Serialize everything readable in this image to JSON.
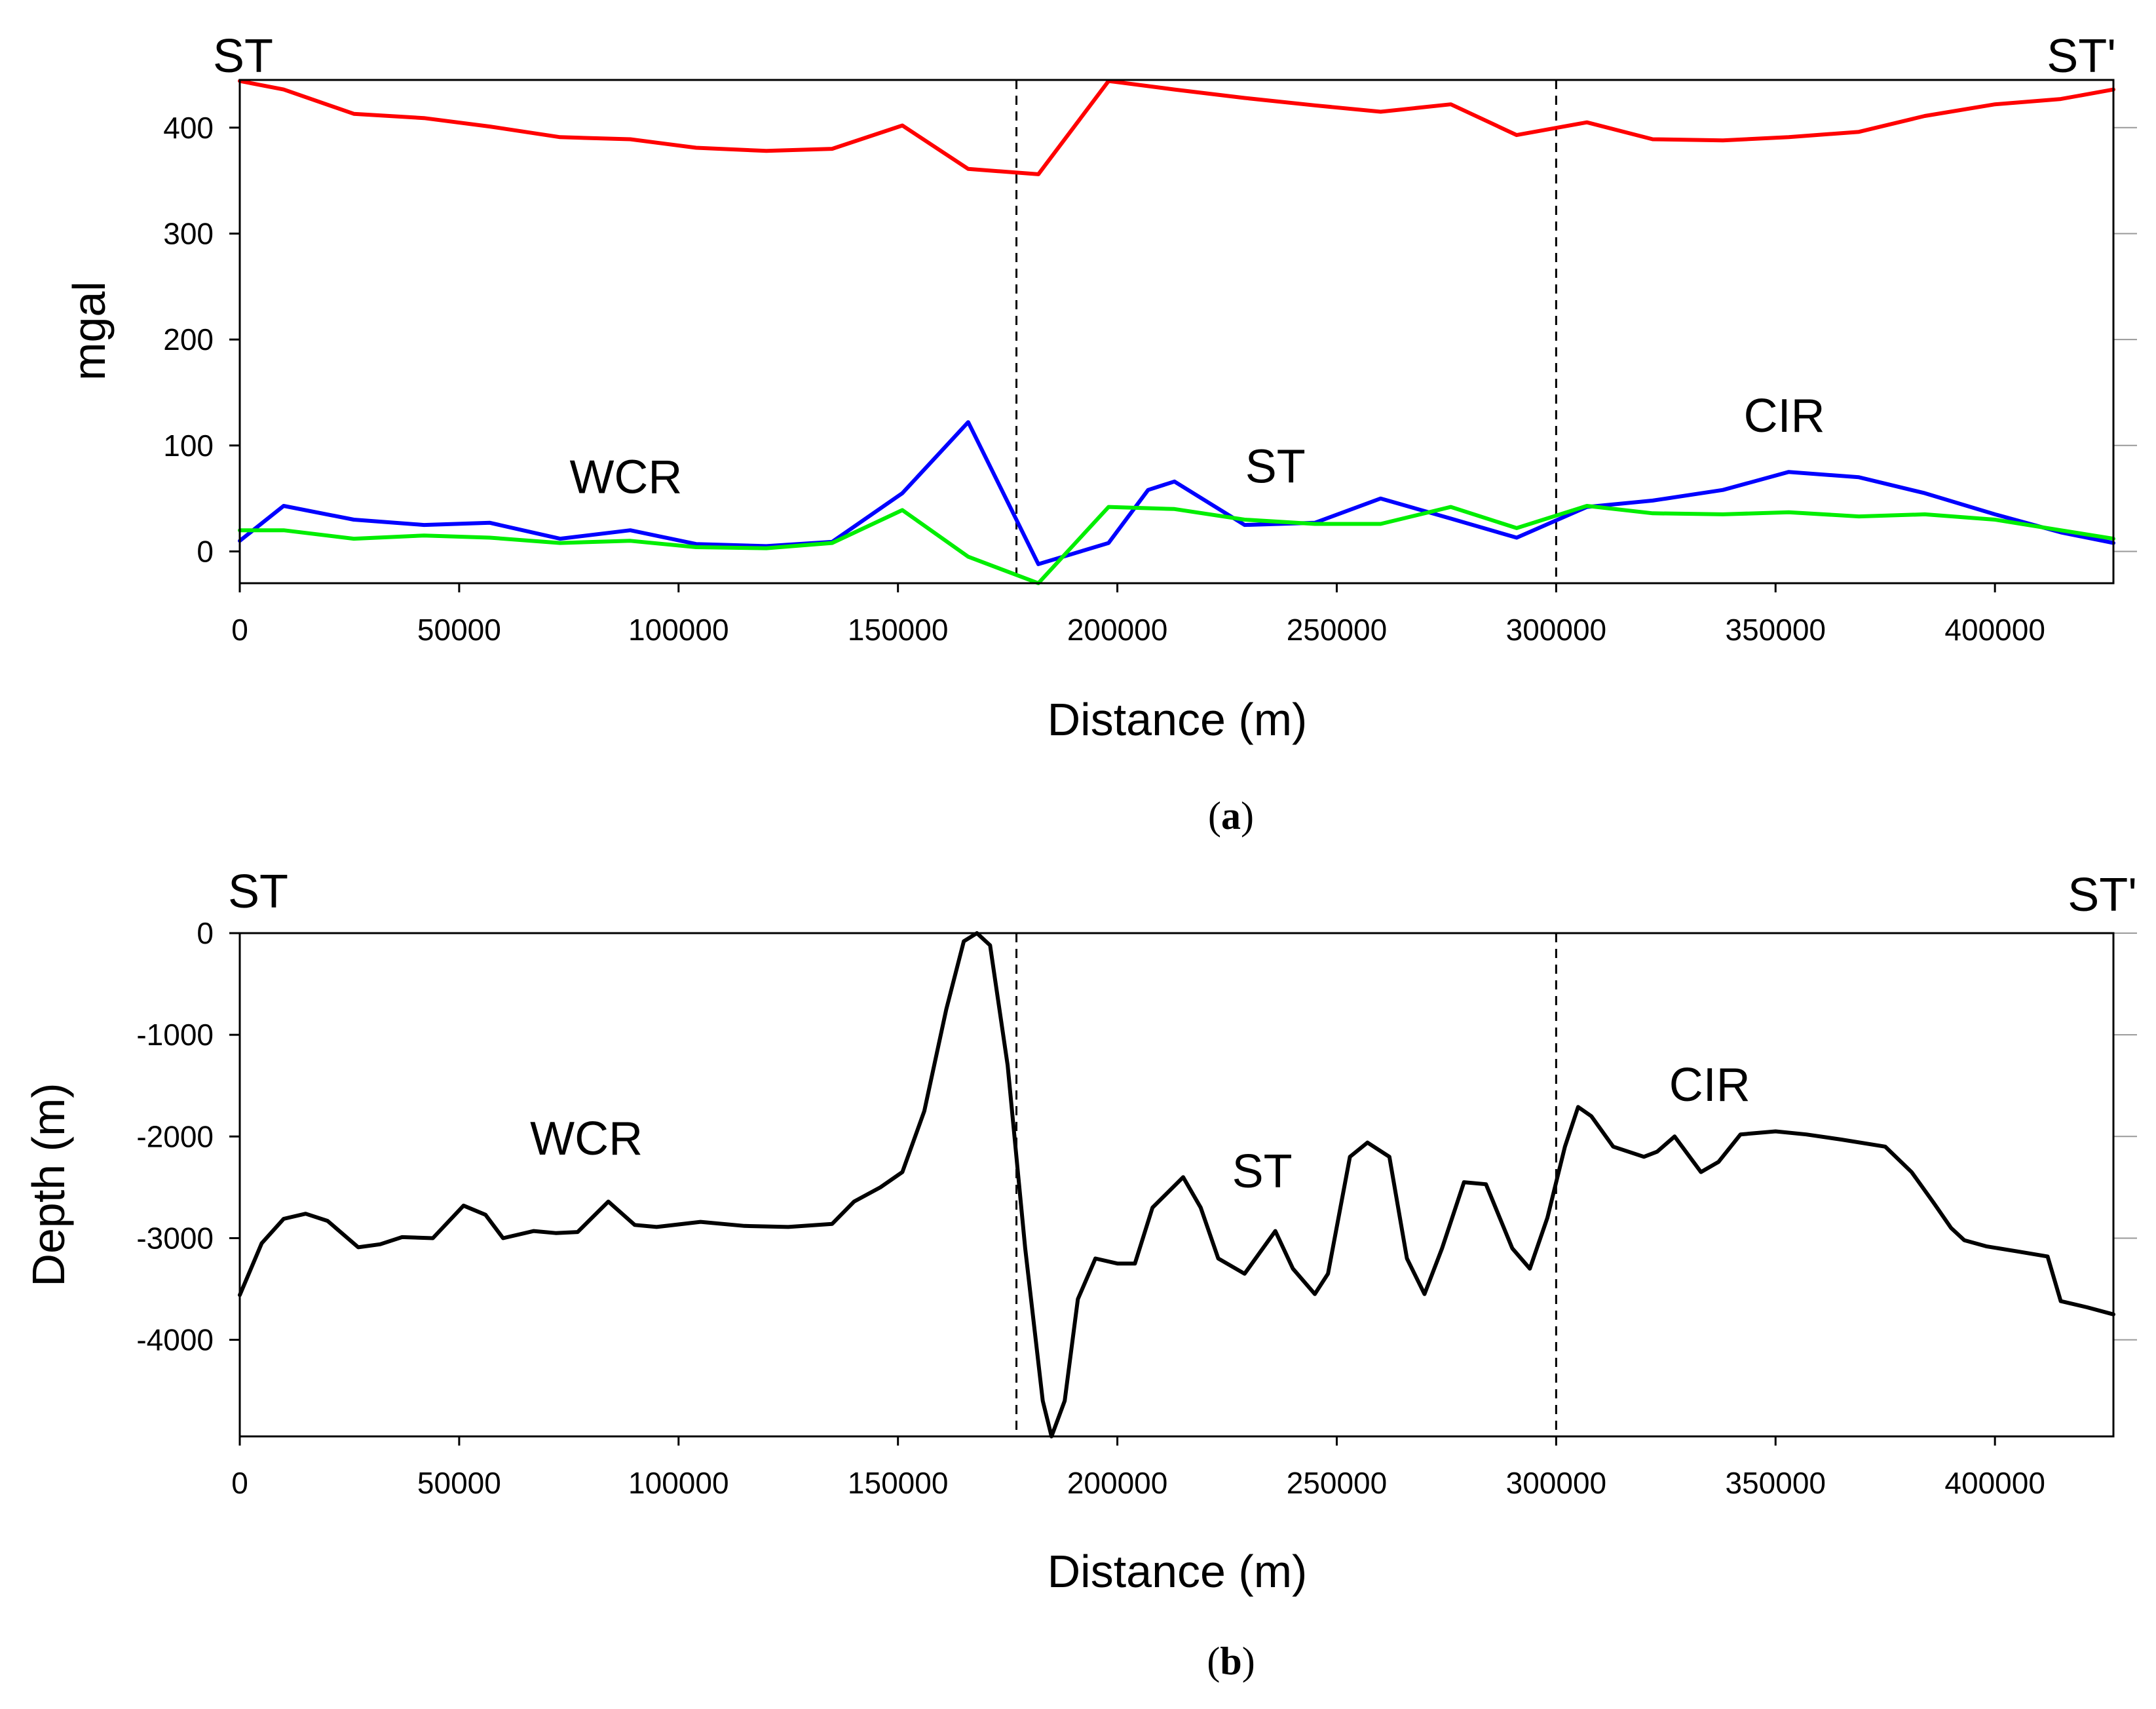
{
  "chart_data": [
    {
      "type": "line",
      "caption": "a",
      "ylabel": "mgal",
      "xlabel": "Distance (m)",
      "profile_start": "ST",
      "profile_end": "ST'",
      "xlim": [
        0,
        427000
      ],
      "ylim": [
        -30,
        445
      ],
      "xticks": [
        0,
        50000,
        100000,
        150000,
        200000,
        250000,
        300000,
        350000,
        400000
      ],
      "yticks": [
        0,
        100,
        200,
        300,
        400
      ],
      "vlines": [
        177000,
        300000
      ],
      "annotations": [
        {
          "text": "WCR",
          "x": 88000,
          "y": 55
        },
        {
          "text": "ST",
          "x": 236000,
          "y": 65
        },
        {
          "text": "CIR",
          "x": 352000,
          "y": 113
        }
      ],
      "series": [
        {
          "name": "red",
          "color": "#ff0000",
          "points": [
            [
              0,
              444
            ],
            [
              10000,
              436
            ],
            [
              26000,
              413
            ],
            [
              42000,
              409
            ],
            [
              57000,
              401
            ],
            [
              73000,
              391
            ],
            [
              89000,
              389
            ],
            [
              104000,
              381
            ],
            [
              120000,
              378
            ],
            [
              135000,
              380
            ],
            [
              151000,
              402
            ],
            [
              166000,
              361
            ],
            [
              182000,
              356
            ],
            [
              198000,
              444
            ],
            [
              213000,
              436
            ],
            [
              229000,
              428
            ],
            [
              245000,
              421
            ],
            [
              260000,
              415
            ],
            [
              276000,
              422
            ],
            [
              291000,
              393
            ],
            [
              307000,
              405
            ],
            [
              322000,
              389
            ],
            [
              338000,
              388
            ],
            [
              353000,
              391
            ],
            [
              369000,
              396
            ],
            [
              384000,
              411
            ],
            [
              400000,
              422
            ],
            [
              415000,
              427
            ],
            [
              427000,
              436
            ]
          ]
        },
        {
          "name": "blue",
          "color": "#0000ff",
          "points": [
            [
              0,
              10
            ],
            [
              10000,
              43
            ],
            [
              26000,
              30
            ],
            [
              42000,
              25
            ],
            [
              57000,
              27
            ],
            [
              73000,
              12
            ],
            [
              89000,
              20
            ],
            [
              104000,
              7
            ],
            [
              120000,
              5
            ],
            [
              135000,
              9
            ],
            [
              151000,
              55
            ],
            [
              166000,
              122
            ],
            [
              182000,
              -12
            ],
            [
              198000,
              8
            ],
            [
              207000,
              58
            ],
            [
              213000,
              66
            ],
            [
              229000,
              25
            ],
            [
              245000,
              27
            ],
            [
              260000,
              50
            ],
            [
              276000,
              31
            ],
            [
              291000,
              13
            ],
            [
              307000,
              42
            ],
            [
              322000,
              48
            ],
            [
              338000,
              58
            ],
            [
              353000,
              75
            ],
            [
              369000,
              70
            ],
            [
              384000,
              55
            ],
            [
              400000,
              35
            ],
            [
              415000,
              18
            ],
            [
              427000,
              8
            ]
          ]
        },
        {
          "name": "green",
          "color": "#00ee00",
          "points": [
            [
              0,
              20
            ],
            [
              10000,
              20
            ],
            [
              26000,
              12
            ],
            [
              42000,
              15
            ],
            [
              57000,
              13
            ],
            [
              73000,
              8
            ],
            [
              89000,
              10
            ],
            [
              104000,
              4
            ],
            [
              120000,
              3
            ],
            [
              135000,
              8
            ],
            [
              151000,
              39
            ],
            [
              166000,
              -5
            ],
            [
              182000,
              -30
            ],
            [
              198000,
              42
            ],
            [
              213000,
              40
            ],
            [
              229000,
              30
            ],
            [
              245000,
              26
            ],
            [
              260000,
              26
            ],
            [
              276000,
              42
            ],
            [
              291000,
              22
            ],
            [
              307000,
              43
            ],
            [
              322000,
              36
            ],
            [
              338000,
              35
            ],
            [
              353000,
              37
            ],
            [
              369000,
              33
            ],
            [
              384000,
              35
            ],
            [
              400000,
              30
            ],
            [
              415000,
              20
            ],
            [
              427000,
              12
            ]
          ]
        }
      ]
    },
    {
      "type": "line",
      "caption": "b",
      "ylabel": "Depth (m)",
      "xlabel": "Distance (m)",
      "profile_start": "ST",
      "profile_end": "ST'",
      "xlim": [
        0,
        427000
      ],
      "ylim": [
        -4950,
        0
      ],
      "xticks": [
        0,
        50000,
        100000,
        150000,
        200000,
        250000,
        300000,
        350000,
        400000
      ],
      "yticks": [
        0,
        -1000,
        -2000,
        -3000,
        -4000
      ],
      "vlines": [
        177000,
        300000
      ],
      "annotations": [
        {
          "text": "WCR",
          "x": 79000,
          "y": -2180
        },
        {
          "text": "ST",
          "x": 233000,
          "y": -2500
        },
        {
          "text": "CIR",
          "x": 335000,
          "y": -1650
        }
      ],
      "series": [
        {
          "name": "depth",
          "color": "#000000",
          "points": [
            [
              0,
              -3560
            ],
            [
              5000,
              -3050
            ],
            [
              10000,
              -2810
            ],
            [
              15000,
              -2760
            ],
            [
              20000,
              -2830
            ],
            [
              27000,
              -3090
            ],
            [
              32000,
              -3060
            ],
            [
              37000,
              -2990
            ],
            [
              44000,
              -3000
            ],
            [
              51000,
              -2680
            ],
            [
              56000,
              -2770
            ],
            [
              60000,
              -3000
            ],
            [
              67000,
              -2930
            ],
            [
              72000,
              -2950
            ],
            [
              77000,
              -2940
            ],
            [
              84000,
              -2640
            ],
            [
              90000,
              -2870
            ],
            [
              95000,
              -2890
            ],
            [
              105000,
              -2840
            ],
            [
              115000,
              -2880
            ],
            [
              125000,
              -2890
            ],
            [
              135000,
              -2860
            ],
            [
              140000,
              -2640
            ],
            [
              146000,
              -2500
            ],
            [
              151000,
              -2350
            ],
            [
              156000,
              -1750
            ],
            [
              161000,
              -750
            ],
            [
              165000,
              -80
            ],
            [
              168000,
              0
            ],
            [
              171000,
              -120
            ],
            [
              175000,
              -1300
            ],
            [
              179000,
              -3100
            ],
            [
              183000,
              -4600
            ],
            [
              185000,
              -4950
            ],
            [
              188000,
              -4600
            ],
            [
              191000,
              -3600
            ],
            [
              195000,
              -3200
            ],
            [
              200000,
              -3250
            ],
            [
              204000,
              -3250
            ],
            [
              208000,
              -2700
            ],
            [
              215000,
              -2400
            ],
            [
              219000,
              -2700
            ],
            [
              223000,
              -3200
            ],
            [
              229000,
              -3350
            ],
            [
              236000,
              -2930
            ],
            [
              240000,
              -3300
            ],
            [
              245000,
              -3550
            ],
            [
              248000,
              -3350
            ],
            [
              253000,
              -2200
            ],
            [
              257000,
              -2060
            ],
            [
              262000,
              -2200
            ],
            [
              266000,
              -3200
            ],
            [
              270000,
              -3550
            ],
            [
              274000,
              -3100
            ],
            [
              279000,
              -2450
            ],
            [
              284000,
              -2470
            ],
            [
              290000,
              -3100
            ],
            [
              294000,
              -3300
            ],
            [
              298000,
              -2800
            ],
            [
              302000,
              -2100
            ],
            [
              305000,
              -1710
            ],
            [
              308000,
              -1800
            ],
            [
              313000,
              -2100
            ],
            [
              320000,
              -2200
            ],
            [
              323000,
              -2150
            ],
            [
              327000,
              -2000
            ],
            [
              333000,
              -2350
            ],
            [
              337000,
              -2250
            ],
            [
              342000,
              -1980
            ],
            [
              350000,
              -1950
            ],
            [
              357000,
              -1980
            ],
            [
              365000,
              -2030
            ],
            [
              375000,
              -2100
            ],
            [
              381000,
              -2350
            ],
            [
              386000,
              -2650
            ],
            [
              390000,
              -2900
            ],
            [
              393000,
              -3020
            ],
            [
              398000,
              -3080
            ],
            [
              405000,
              -3130
            ],
            [
              412000,
              -3180
            ],
            [
              415000,
              -3620
            ],
            [
              421000,
              -3680
            ],
            [
              427000,
              -3750
            ]
          ]
        }
      ]
    }
  ]
}
